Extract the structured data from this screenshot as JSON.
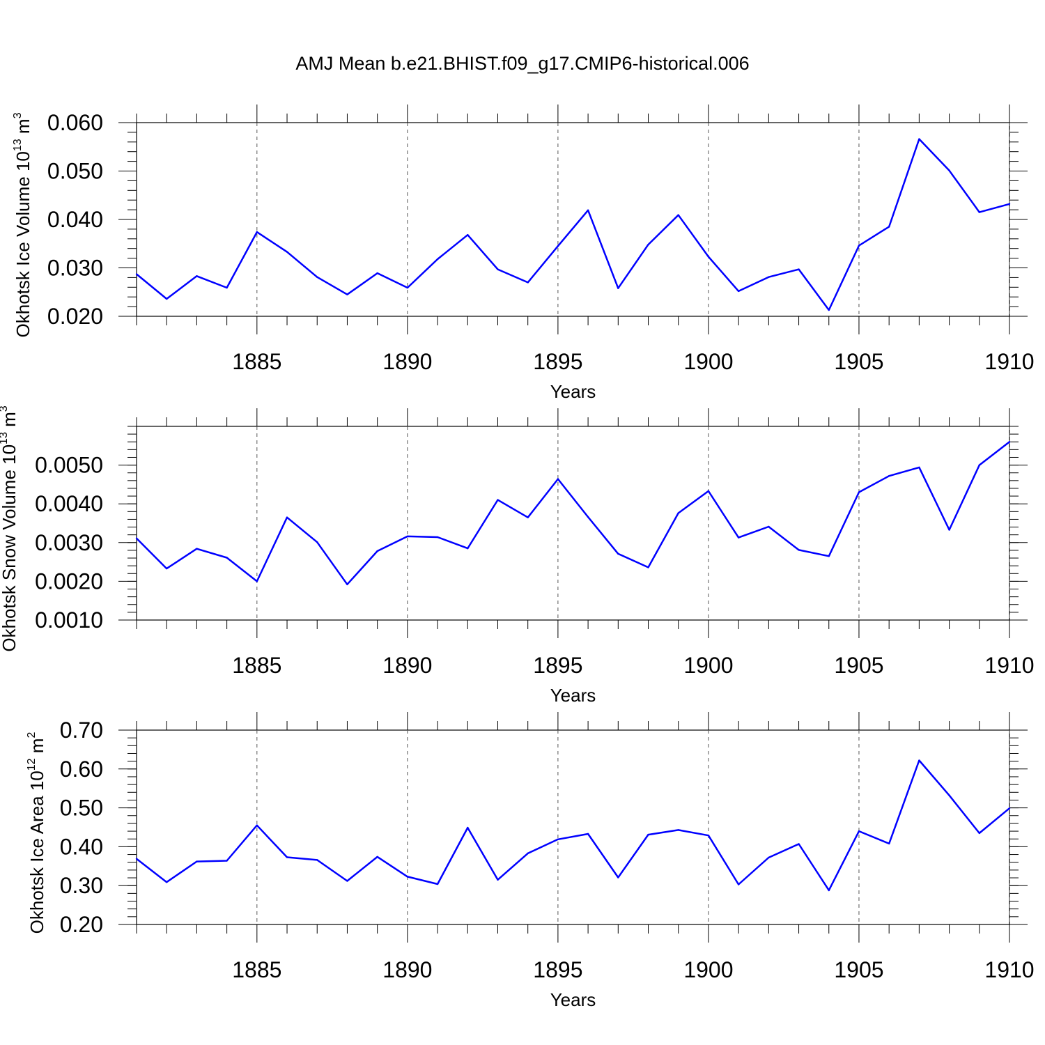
{
  "title": "AMJ Mean b.e21.BHIST.f09_g17.CMIP6-historical.006",
  "colors": {
    "line": "#0000ff",
    "grid": "#555555",
    "frame": "#000000"
  },
  "chart_data": [
    {
      "type": "line",
      "xlabel": "Years",
      "ylabel": {
        "text": "Okhotsk Ice Volume 10",
        "sup": "13",
        "unit": " m",
        "unit_sup": "3"
      },
      "xlim": [
        1881,
        1910
      ],
      "ylim": [
        0.02,
        0.06
      ],
      "xticks": [
        1885,
        1890,
        1895,
        1900,
        1905,
        1910
      ],
      "yticks": [
        0.02,
        0.03,
        0.04,
        0.05,
        0.06
      ],
      "ytick_labels": [
        "0.020",
        "0.030",
        "0.040",
        "0.050",
        "0.060"
      ],
      "grid": "vertical dashed at major x ticks",
      "x": [
        1881,
        1882,
        1883,
        1884,
        1885,
        1886,
        1887,
        1888,
        1889,
        1890,
        1891,
        1892,
        1893,
        1894,
        1895,
        1896,
        1897,
        1898,
        1899,
        1900,
        1901,
        1902,
        1903,
        1904,
        1905,
        1906,
        1907,
        1908,
        1909,
        1910
      ],
      "values": [
        0.0287,
        0.0236,
        0.0283,
        0.0259,
        0.0374,
        0.0333,
        0.0281,
        0.0245,
        0.0289,
        0.0259,
        0.0318,
        0.0368,
        0.0297,
        0.027,
        0.0345,
        0.0419,
        0.0258,
        0.0348,
        0.0409,
        0.0323,
        0.0252,
        0.0281,
        0.0297,
        0.0213,
        0.0346,
        0.0385,
        0.0566,
        0.0501,
        0.0415,
        0.0432
      ]
    },
    {
      "type": "line",
      "xlabel": "Years",
      "ylabel": {
        "text": "Okhotsk Snow Volume 10",
        "sup": "13",
        "unit": " m",
        "unit_sup": "3"
      },
      "xlim": [
        1881,
        1910
      ],
      "ylim": [
        0.001,
        0.006
      ],
      "xticks": [
        1885,
        1890,
        1895,
        1900,
        1905,
        1910
      ],
      "yticks": [
        0.001,
        0.002,
        0.003,
        0.004,
        0.005
      ],
      "ytick_labels": [
        "0.0010",
        "0.0020",
        "0.0030",
        "0.0040",
        "0.0050"
      ],
      "grid": "vertical dashed at major x ticks",
      "x": [
        1881,
        1882,
        1883,
        1884,
        1885,
        1886,
        1887,
        1888,
        1889,
        1890,
        1891,
        1892,
        1893,
        1894,
        1895,
        1896,
        1897,
        1898,
        1899,
        1900,
        1901,
        1902,
        1903,
        1904,
        1905,
        1906,
        1907,
        1908,
        1909,
        1910
      ],
      "values": [
        0.00311,
        0.00233,
        0.00284,
        0.00261,
        0.002,
        0.00365,
        0.00301,
        0.00192,
        0.00278,
        0.00316,
        0.00314,
        0.00285,
        0.0041,
        0.00365,
        0.00464,
        0.00366,
        0.00271,
        0.00236,
        0.00376,
        0.00433,
        0.00313,
        0.00341,
        0.00281,
        0.00265,
        0.0043,
        0.00472,
        0.00494,
        0.00333,
        0.005,
        0.0056
      ]
    },
    {
      "type": "line",
      "xlabel": "Years",
      "ylabel": {
        "text": "Okhotsk Ice Area 10",
        "sup": "12",
        "unit": " m",
        "unit_sup": "2"
      },
      "xlim": [
        1881,
        1910
      ],
      "ylim": [
        0.2,
        0.7
      ],
      "xticks": [
        1885,
        1890,
        1895,
        1900,
        1905,
        1910
      ],
      "yticks": [
        0.2,
        0.3,
        0.4,
        0.5,
        0.6,
        0.7
      ],
      "ytick_labels": [
        "0.20",
        "0.30",
        "0.40",
        "0.50",
        "0.60",
        "0.70"
      ],
      "grid": "vertical dashed at major x ticks",
      "x": [
        1881,
        1882,
        1883,
        1884,
        1885,
        1886,
        1887,
        1888,
        1889,
        1890,
        1891,
        1892,
        1893,
        1894,
        1895,
        1896,
        1897,
        1898,
        1899,
        1900,
        1901,
        1902,
        1903,
        1904,
        1905,
        1906,
        1907,
        1908,
        1909,
        1910
      ],
      "values": [
        0.369,
        0.309,
        0.362,
        0.364,
        0.455,
        0.373,
        0.366,
        0.312,
        0.374,
        0.323,
        0.304,
        0.449,
        0.315,
        0.383,
        0.419,
        0.433,
        0.321,
        0.431,
        0.443,
        0.429,
        0.303,
        0.372,
        0.407,
        0.288,
        0.44,
        0.408,
        0.622,
        0.532,
        0.435,
        0.499
      ]
    }
  ]
}
